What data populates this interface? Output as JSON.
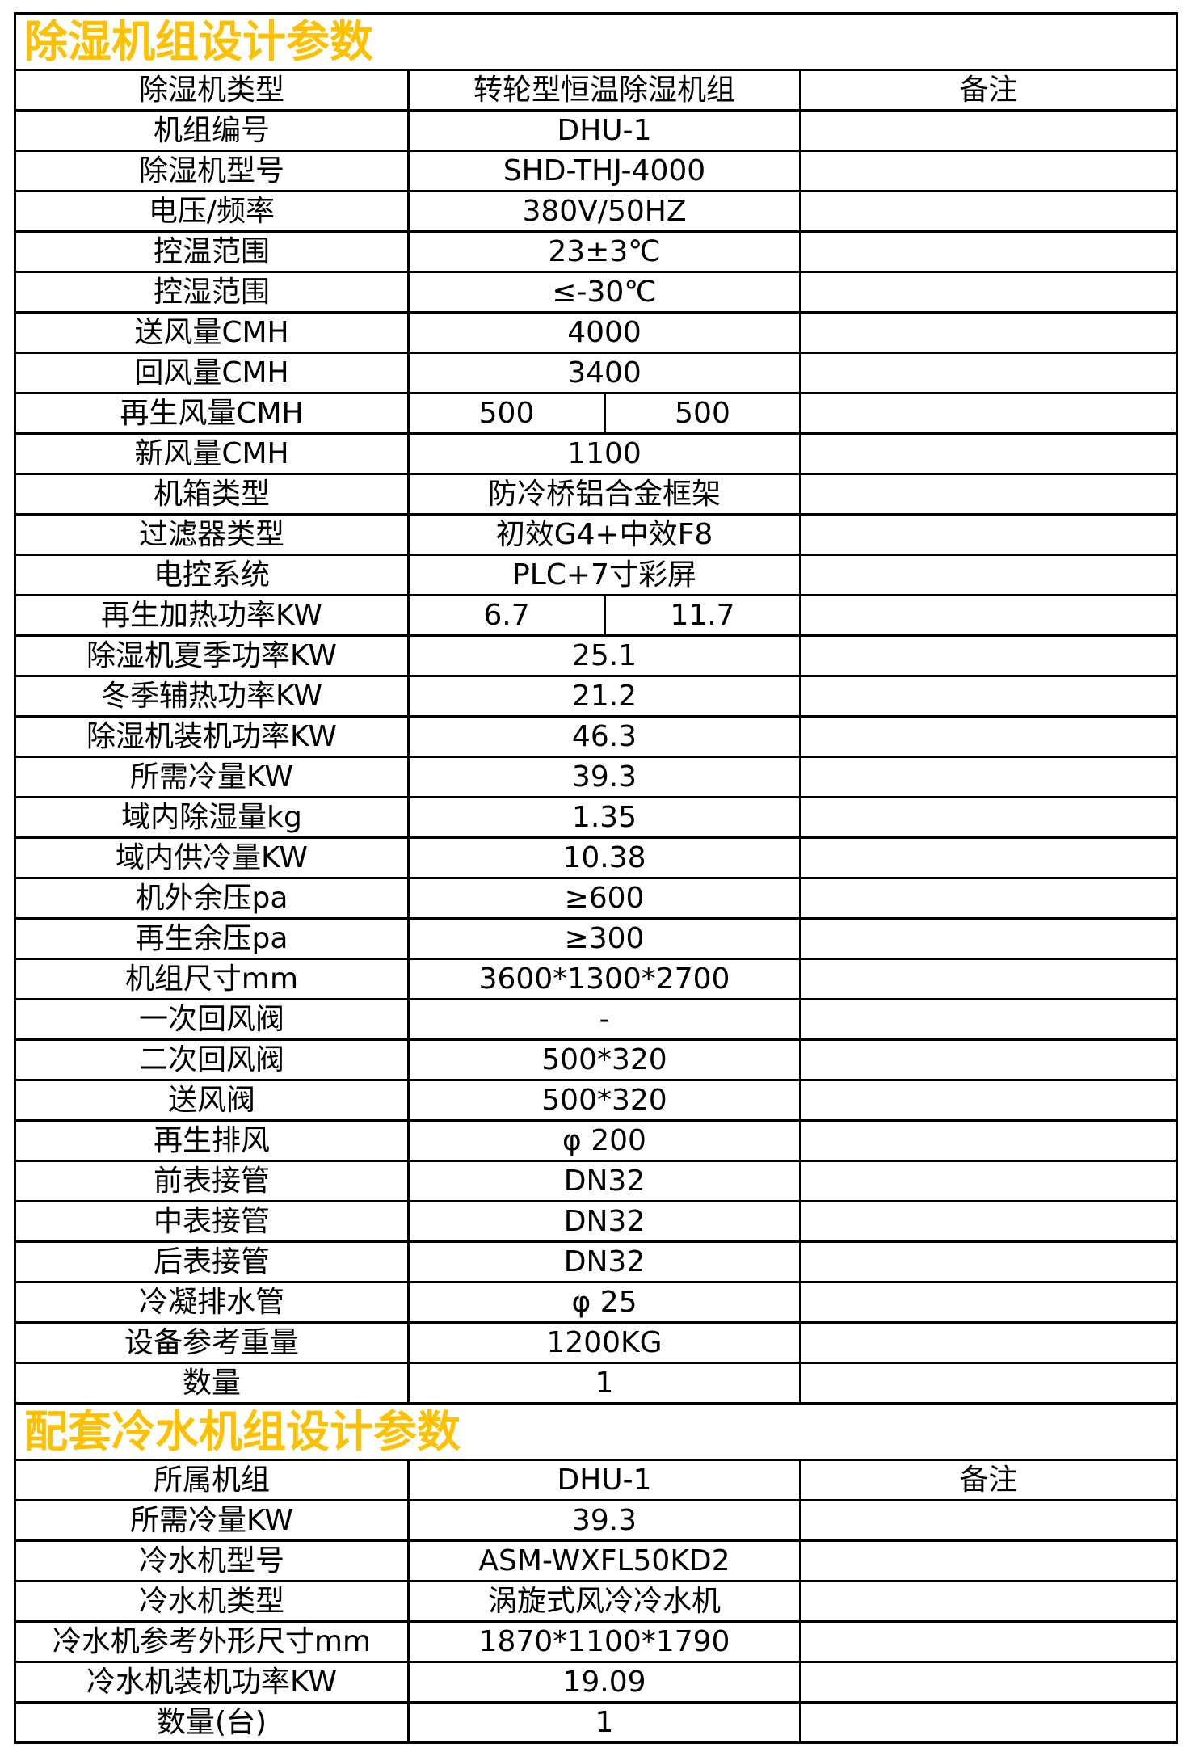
{
  "accent_color": "#FFC000",
  "border_color": "#000000",
  "sections": [
    {
      "title": "除湿机组设计参数",
      "rows": [
        {
          "label": "除湿机类型",
          "value": "转轮型恒温除湿机组",
          "remark": "备注"
        },
        {
          "label": "机组编号",
          "value": "DHU-1"
        },
        {
          "label": "除湿机型号",
          "value": "SHD-THJ-4000"
        },
        {
          "label": "电压/频率",
          "value": "380V/50HZ"
        },
        {
          "label": "控温范围",
          "value": "23±3℃"
        },
        {
          "label": "控湿范围",
          "value": "≤-30℃"
        },
        {
          "label": "送风量CMH",
          "value": "4000"
        },
        {
          "label": "回风量CMH",
          "value": "3400"
        },
        {
          "label": "再生风量CMH",
          "values": [
            "500",
            "500"
          ]
        },
        {
          "label": "新风量CMH",
          "value": "1100"
        },
        {
          "label": "机箱类型",
          "value": "防冷桥铝合金框架"
        },
        {
          "label": "过滤器类型",
          "value": "初效G4+中效F8"
        },
        {
          "label": "电控系统",
          "value": "PLC+7寸彩屏"
        },
        {
          "label": "再生加热功率KW",
          "values": [
            "6.7",
            "11.7"
          ]
        },
        {
          "label": "除湿机夏季功率KW",
          "value": "25.1"
        },
        {
          "label": "冬季辅热功率KW",
          "value": "21.2"
        },
        {
          "label": "除湿机装机功率KW",
          "value": "46.3"
        },
        {
          "label": "所需冷量KW",
          "value": "39.3"
        },
        {
          "label": "域内除湿量kg",
          "value": "1.35"
        },
        {
          "label": "域内供冷量KW",
          "value": "10.38"
        },
        {
          "label": "机外余压pa",
          "value": "≥600"
        },
        {
          "label": "再生余压pa",
          "value": "≥300"
        },
        {
          "label": "机组尺寸mm",
          "value": "3600*1300*2700"
        },
        {
          "label": "一次回风阀",
          "value": "-"
        },
        {
          "label": "二次回风阀",
          "value": "500*320"
        },
        {
          "label": "送风阀",
          "value": "500*320"
        },
        {
          "label": "再生排风",
          "value": "φ 200"
        },
        {
          "label": "前表接管",
          "value": "DN32"
        },
        {
          "label": "中表接管",
          "value": "DN32"
        },
        {
          "label": "后表接管",
          "value": "DN32"
        },
        {
          "label": "冷凝排水管",
          "value": "φ 25"
        },
        {
          "label": "设备参考重量",
          "value": "1200KG"
        },
        {
          "label": "数量",
          "value": "1"
        }
      ]
    },
    {
      "title": "配套冷水机组设计参数",
      "rows": [
        {
          "label": "所属机组",
          "value": "DHU-1",
          "remark": "备注"
        },
        {
          "label": "所需冷量KW",
          "value": "39.3"
        },
        {
          "label": "冷水机型号",
          "value": "ASM-WXFL50KD2"
        },
        {
          "label": "冷水机类型",
          "value": "涡旋式风冷冷水机"
        },
        {
          "label": "冷水机参考外形尺寸mm",
          "value": "1870*1100*1790"
        },
        {
          "label": "冷水机装机功率KW",
          "value": "19.09"
        },
        {
          "label": "数量(台)",
          "value": "1"
        }
      ]
    }
  ]
}
